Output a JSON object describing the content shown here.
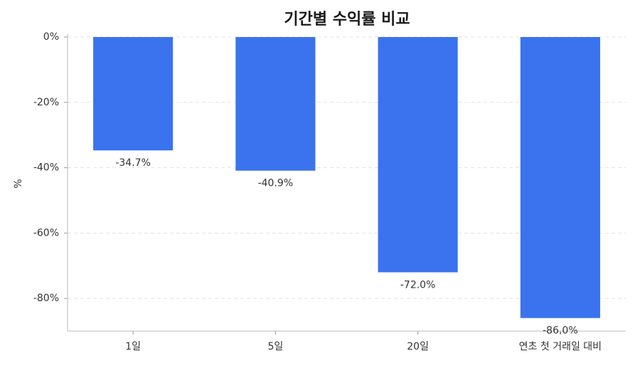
{
  "chart_data": {
    "type": "bar",
    "title": "기간별 수익률 비교",
    "y_label": "%",
    "categories": [
      "1일",
      "5일",
      "20일",
      "연초 첫 거래일 대비"
    ],
    "values": [
      -34.7,
      -40.9,
      -72.0,
      -86.0
    ],
    "value_labels": [
      "-34.7%",
      "-40.9%",
      "-72.0%",
      "-86.0%"
    ],
    "color": "#3b73ee",
    "ylim": [
      -90,
      0
    ],
    "yticks": [
      {
        "value": 0,
        "label": "0%"
      },
      {
        "value": -20,
        "label": "-20%"
      },
      {
        "value": -40,
        "label": "-40%"
      },
      {
        "value": -60,
        "label": "-60%"
      },
      {
        "value": -80,
        "label": "-80%"
      }
    ],
    "grid": true
  }
}
